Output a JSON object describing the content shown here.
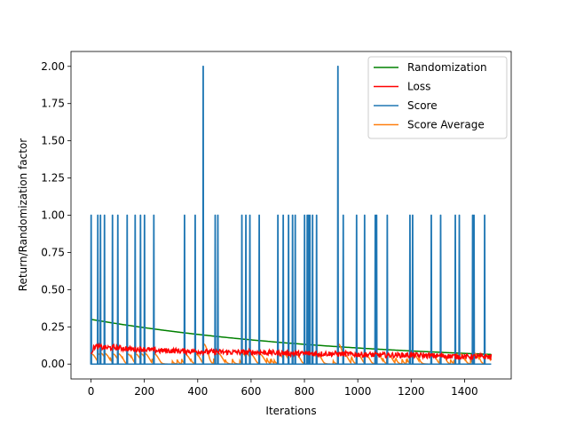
{
  "chart_data": {
    "type": "line",
    "title": "",
    "xlabel": "Iterations",
    "ylabel": "Return/Randomization factor",
    "xlim": [
      -75,
      1575
    ],
    "ylim": [
      -0.1,
      2.1
    ],
    "xticks": [
      "0",
      "200",
      "400",
      "600",
      "800",
      "1000",
      "1200",
      "1400"
    ],
    "yticks": [
      "0.00",
      "0.25",
      "0.50",
      "0.75",
      "1.00",
      "1.25",
      "1.50",
      "1.75",
      "2.00"
    ],
    "grid": false,
    "legend_position": "top-right",
    "series": [
      {
        "name": "Randomization",
        "color": "#008000",
        "style": "decay",
        "x_range": [
          0,
          1500
        ],
        "start": 0.3,
        "end": 0.065
      },
      {
        "name": "Loss",
        "color": "#ff0000",
        "style": "noisy",
        "x": [
          0,
          15,
          50,
          100,
          150,
          200,
          250,
          300,
          400,
          500,
          600,
          700,
          800,
          900,
          1000,
          1100,
          1200,
          1300,
          1400,
          1500
        ],
        "y": [
          0.08,
          0.12,
          0.11,
          0.11,
          0.1,
          0.1,
          0.09,
          0.09,
          0.085,
          0.08,
          0.08,
          0.075,
          0.07,
          0.07,
          0.065,
          0.06,
          0.06,
          0.055,
          0.05,
          0.05
        ]
      },
      {
        "name": "Score",
        "color": "#1f77b4",
        "style": "spikes",
        "x": [
          0,
          1500
        ],
        "y": [
          0,
          0
        ],
        "spikes": [
          {
            "x": 0,
            "y": 1
          },
          {
            "x": 25,
            "y": 1
          },
          {
            "x": 35,
            "y": 1
          },
          {
            "x": 50,
            "y": 1
          },
          {
            "x": 80,
            "y": 1
          },
          {
            "x": 100,
            "y": 1
          },
          {
            "x": 135,
            "y": 1
          },
          {
            "x": 165,
            "y": 1
          },
          {
            "x": 185,
            "y": 1
          },
          {
            "x": 200,
            "y": 1
          },
          {
            "x": 235,
            "y": 1
          },
          {
            "x": 350,
            "y": 1
          },
          {
            "x": 390,
            "y": 1
          },
          {
            "x": 420,
            "y": 2
          },
          {
            "x": 465,
            "y": 1
          },
          {
            "x": 475,
            "y": 1
          },
          {
            "x": 565,
            "y": 1
          },
          {
            "x": 580,
            "y": 1
          },
          {
            "x": 595,
            "y": 1
          },
          {
            "x": 630,
            "y": 1
          },
          {
            "x": 700,
            "y": 1
          },
          {
            "x": 720,
            "y": 1
          },
          {
            "x": 740,
            "y": 1
          },
          {
            "x": 755,
            "y": 1
          },
          {
            "x": 765,
            "y": 1
          },
          {
            "x": 800,
            "y": 1
          },
          {
            "x": 810,
            "y": 1
          },
          {
            "x": 815,
            "y": 1
          },
          {
            "x": 820,
            "y": 1
          },
          {
            "x": 830,
            "y": 1
          },
          {
            "x": 845,
            "y": 1
          },
          {
            "x": 925,
            "y": 2
          },
          {
            "x": 945,
            "y": 1
          },
          {
            "x": 995,
            "y": 1
          },
          {
            "x": 1025,
            "y": 1
          },
          {
            "x": 1065,
            "y": 1
          },
          {
            "x": 1070,
            "y": 1
          },
          {
            "x": 1110,
            "y": 1
          },
          {
            "x": 1195,
            "y": 1
          },
          {
            "x": 1205,
            "y": 1
          },
          {
            "x": 1275,
            "y": 1
          },
          {
            "x": 1310,
            "y": 1
          },
          {
            "x": 1365,
            "y": 1
          },
          {
            "x": 1380,
            "y": 1
          },
          {
            "x": 1430,
            "y": 1
          },
          {
            "x": 1435,
            "y": 1
          },
          {
            "x": 1475,
            "y": 1
          }
        ]
      },
      {
        "name": "Score Average",
        "color": "#ff7f0e",
        "style": "average",
        "x_range": [
          0,
          1500
        ]
      }
    ]
  }
}
